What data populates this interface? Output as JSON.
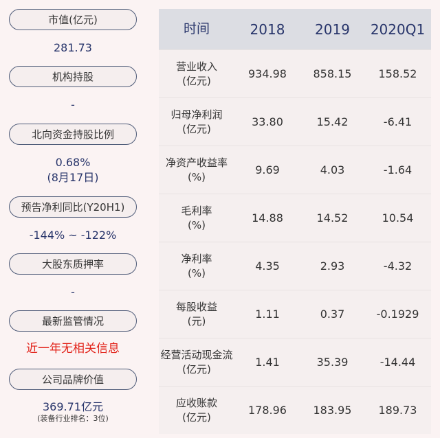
{
  "left_panel": [
    {
      "label": "市值(亿元)",
      "value": "281.73"
    },
    {
      "label": "机构持股",
      "value": "-"
    },
    {
      "label": "北向资金持股比例",
      "value": "0.68%",
      "value2": "(8月17日)"
    },
    {
      "label": "预告净利同比(Y20H1)",
      "value": "-144% ~ -122%"
    },
    {
      "label": "大股东质押率",
      "value": "-"
    },
    {
      "label": "最新监管情况",
      "value": "近一年无相关信息",
      "value_color": "#e2231a"
    },
    {
      "label": "公司品牌价值",
      "value": "369.71亿元",
      "value_sub": "(装备行业排名：3位)"
    }
  ],
  "table": {
    "headers": [
      "时间",
      "2018",
      "2019",
      "2020Q1"
    ],
    "rows": [
      {
        "name": "营业收入",
        "unit": "(亿元)",
        "values": [
          "934.98",
          "858.15",
          "158.52"
        ]
      },
      {
        "name": "归母净利润",
        "unit": "(亿元)",
        "values": [
          "33.80",
          "15.42",
          "-6.41"
        ]
      },
      {
        "name": "净资产收益率",
        "unit": "(%)",
        "values": [
          "9.69",
          "4.03",
          "-1.64"
        ]
      },
      {
        "name": "毛利率",
        "unit": "(%)",
        "values": [
          "14.88",
          "14.52",
          "10.54"
        ]
      },
      {
        "name": "净利率",
        "unit": "(%)",
        "values": [
          "4.35",
          "2.93",
          "-4.32"
        ]
      },
      {
        "name": "每股收益",
        "unit": "(元)",
        "values": [
          "1.11",
          "0.37",
          "-0.1929"
        ]
      },
      {
        "name": "经营活动现金流",
        "unit": "(亿元)",
        "values": [
          "1.41",
          "35.39",
          "-14.44"
        ]
      },
      {
        "name": "应收账款",
        "unit": "(亿元)",
        "values": [
          "178.96",
          "183.95",
          "189.73"
        ]
      }
    ]
  },
  "colors": {
    "accent": "#27346a",
    "alert": "#e2231a",
    "header_bg": "#dcdde3",
    "background": "#fbf3f3"
  }
}
